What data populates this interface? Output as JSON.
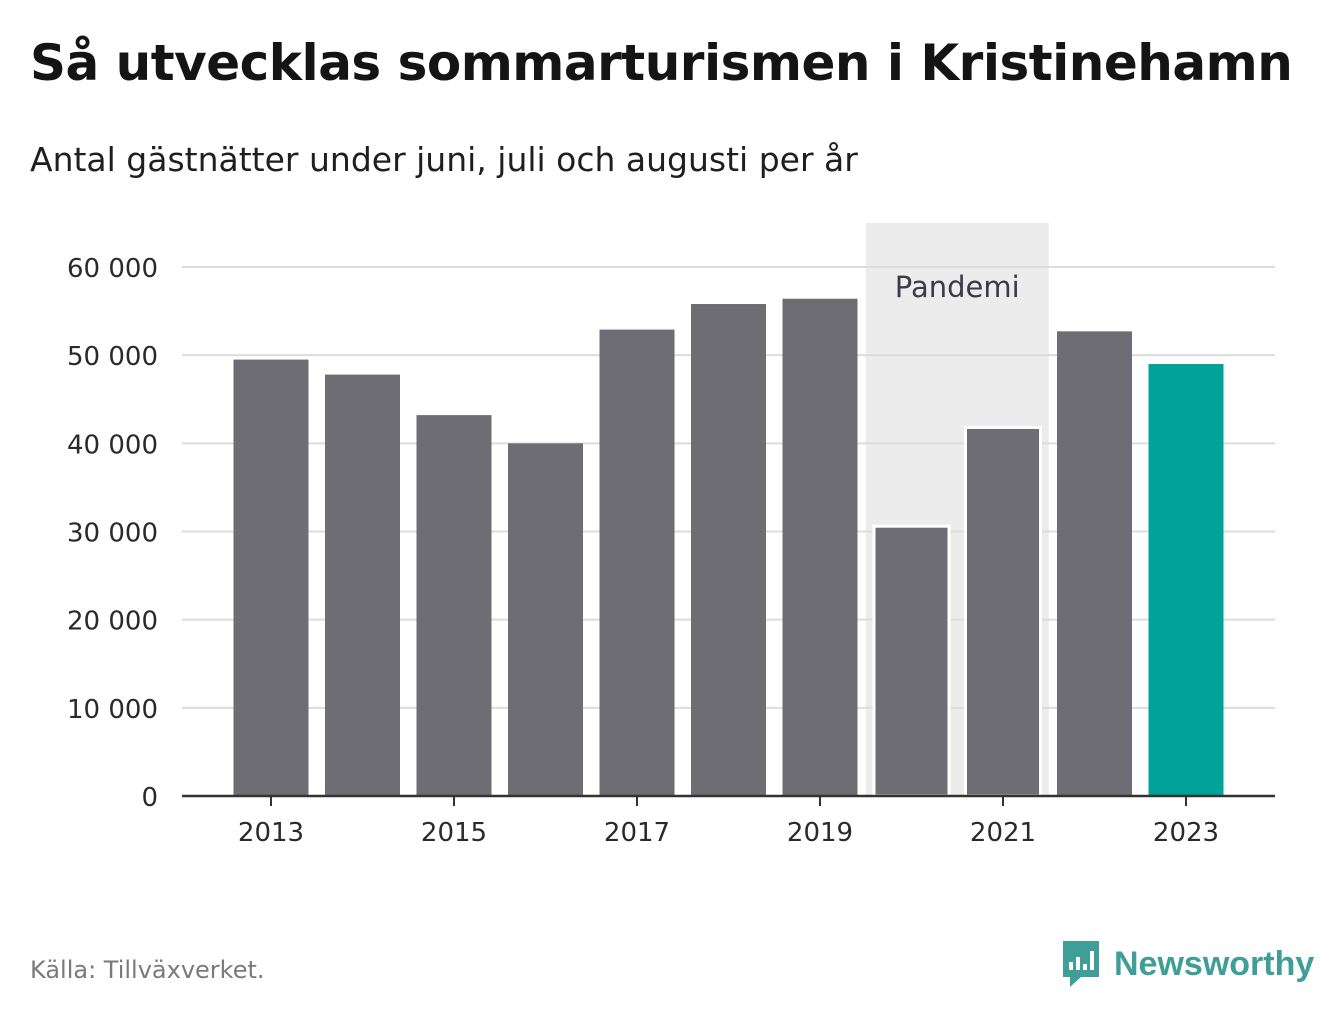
{
  "title": "Så utvecklas sommarturismen i Kristinehamn",
  "subtitle": "Antal gästnätter under juni, juli och augusti per år",
  "source": "Källa: Tillväxverket.",
  "brand": {
    "name": "Newsworthy",
    "icon": "newsworthy-logo-icon",
    "color": "#3f9e98"
  },
  "chart_data": {
    "type": "bar",
    "categories": [
      "2013",
      "2014",
      "2015",
      "2016",
      "2017",
      "2018",
      "2019",
      "2020",
      "2021",
      "2022",
      "2023"
    ],
    "values": [
      49500,
      47800,
      43200,
      40000,
      52900,
      55800,
      56400,
      30600,
      41800,
      52700,
      49000
    ],
    "x_tick_labels": [
      "2013",
      "2015",
      "2017",
      "2019",
      "2021",
      "2023"
    ],
    "y_ticks": [
      0,
      10000,
      20000,
      30000,
      40000,
      50000,
      60000
    ],
    "y_tick_labels": [
      "0",
      "10 000",
      "20 000",
      "30 000",
      "40 000",
      "50 000",
      "60 000"
    ],
    "ylim": [
      0,
      60000
    ],
    "grid": true,
    "highlight": {
      "category": "2023",
      "color": "#00a29a"
    },
    "bar_color": "#6e6d73",
    "annotation": {
      "label": "Pandemi",
      "from": "2020",
      "to": "2021",
      "color": "#ececec"
    }
  }
}
